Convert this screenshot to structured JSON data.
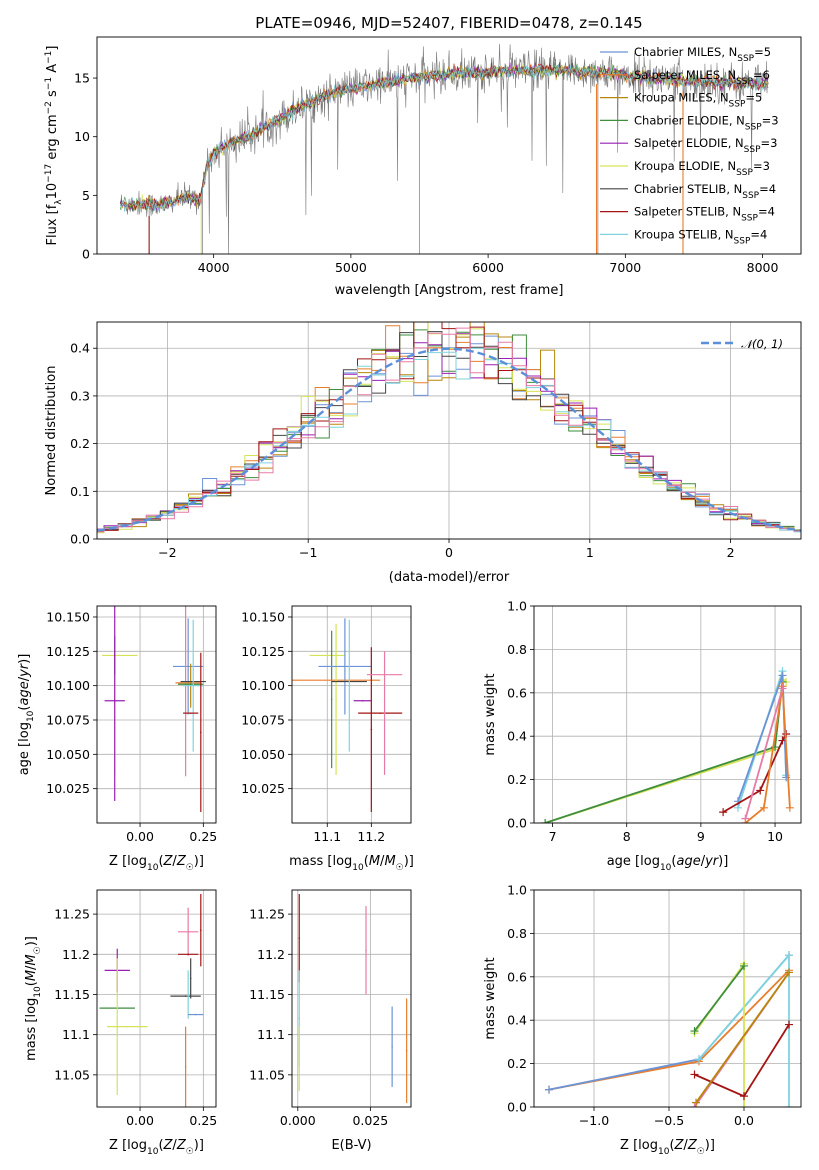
{
  "figure_title": "PLATE=0946, MJD=52407, FIBERID=0478, z=0.145",
  "colors": {
    "Chabrier MILES": "#6b93d6",
    "Salpeter MILES": "#e87d2c",
    "Kroupa MILES": "#b8860b",
    "Chabrier ELODIE": "#3e8e3e",
    "Salpeter ELODIE": "#9a1fb4",
    "Kroupa ELODIE": "#d6e35a",
    "Chabrier STELIB": "#444444",
    "Salpeter STELIB": "#a31515",
    "Kroupa STELIB": "#7fd3df",
    "extra_pink": "#e87aa6",
    "normal_curve": "#5b8fd9"
  },
  "chart_data": [
    {
      "id": "spectrum",
      "type": "line",
      "title": "PLATE=0946, MJD=52407, FIBERID=0478, z=0.145",
      "xlabel": "wavelength [Angstrom, rest frame]",
      "ylabel": "Flux [f_λ 10^-17 erg cm^-2 s^-1 A^-1]",
      "xlim": [
        3150,
        8280
      ],
      "ylim": [
        0,
        18.5
      ],
      "xticks": [
        4000,
        5000,
        6000,
        7000,
        8000
      ],
      "yticks": [
        0,
        5,
        10,
        15
      ],
      "grid": false,
      "legend_position": "top-right",
      "continuum": {
        "x": [
          3320,
          3400,
          3500,
          3600,
          3700,
          3800,
          3900,
          3950,
          4000,
          4100,
          4200,
          4300,
          4400,
          4500,
          4600,
          4700,
          4800,
          4900,
          5000,
          5200,
          5400,
          5600,
          5800,
          6000,
          6200,
          6400,
          6600,
          6800,
          7000,
          7200,
          7400,
          7600,
          7800,
          8040
        ],
        "y": [
          4.3,
          4.2,
          4.3,
          4.1,
          4.5,
          4.9,
          4.6,
          7.5,
          8.6,
          9.3,
          9.8,
          10.3,
          11.0,
          11.6,
          12.4,
          12.9,
          13.4,
          13.9,
          14.1,
          14.5,
          14.9,
          15.2,
          15.4,
          15.5,
          15.6,
          15.7,
          15.6,
          15.5,
          15.2,
          15.0,
          14.8,
          14.7,
          14.6,
          14.5
        ]
      },
      "series": [
        {
          "name": "Chabrier MILES, N_SSP=5",
          "color": "Chabrier MILES"
        },
        {
          "name": "Salpeter MILES, N_SSP=6",
          "color": "Salpeter MILES"
        },
        {
          "name": "Kroupa MILES, N_SSP=5",
          "color": "Kroupa MILES"
        },
        {
          "name": "Chabrier ELODIE, N_SSP=3",
          "color": "Chabrier ELODIE"
        },
        {
          "name": "Salpeter ELODIE, N_SSP=3",
          "color": "Salpeter ELODIE"
        },
        {
          "name": "Kroupa ELODIE, N_SSP=3",
          "color": "Kroupa ELODIE"
        },
        {
          "name": "Chabrier STELIB, N_SSP=4",
          "color": "Chabrier STELIB"
        },
        {
          "name": "Salpeter STELIB, N_SSP=4",
          "color": "Salpeter STELIB"
        },
        {
          "name": "Kroupa STELIB, N_SSP=4",
          "color": "Kroupa STELIB"
        }
      ]
    },
    {
      "id": "residuals",
      "type": "step",
      "xlabel": "(data-model)/error",
      "ylabel": "Normed distribution",
      "xlim": [
        -2.5,
        2.5
      ],
      "ylim": [
        0,
        0.455
      ],
      "xticks": [
        -2,
        -1,
        0,
        1,
        2
      ],
      "yticks": [
        0.0,
        0.1,
        0.2,
        0.3,
        0.4
      ],
      "grid": true,
      "legend_position": "top-right",
      "reference_curve": {
        "label": "𝒩(0, 1)",
        "mean": 0,
        "sigma": 1
      },
      "bin_width": 0.1
    },
    {
      "id": "age-vs-Z",
      "type": "errorbar",
      "xlabel": "Z [log10(Z/Z☉)]",
      "ylabel": "age [log10(age/yr)]",
      "xlim": [
        -0.17,
        0.3
      ],
      "ylim": [
        10.0,
        10.158
      ],
      "xticks": [
        0.0,
        0.25
      ],
      "xticklabels": [
        "0.00",
        "0.25"
      ],
      "yticks": [
        10.025,
        10.05,
        10.075,
        10.1,
        10.125,
        10.15
      ],
      "yticklabels": [
        "10.025",
        "10.050",
        "10.075",
        "10.100",
        "10.125",
        "10.150"
      ],
      "grid": true,
      "points": [
        {
          "color": "Kroupa ELODIE",
          "x": -0.08,
          "xerr": 0.07,
          "y": 10.122,
          "yerr": 0.0
        },
        {
          "color": "Kroupa ELODIE",
          "x": -0.1,
          "xerr": 0.0,
          "y": 10.08,
          "yerr": 0.045
        },
        {
          "color": "Chabrier ELODIE",
          "x": -0.1,
          "xerr": 0.0,
          "y": 10.122,
          "yerr": 0.014
        },
        {
          "color": "Salpeter ELODIE",
          "x": -0.1,
          "xerr": 0.04,
          "y": 10.089,
          "yerr": 0.073
        },
        {
          "color": "Chabrier MILES",
          "x": 0.19,
          "xerr": 0.06,
          "y": 10.114,
          "yerr": 0.035
        },
        {
          "color": "Salpeter MILES",
          "x": 0.19,
          "xerr": 0.05,
          "y": 10.102,
          "yerr": 0.0
        },
        {
          "color": "Kroupa MILES",
          "x": 0.2,
          "xerr": 0.0,
          "y": 10.1,
          "yerr": 0.016
        },
        {
          "color": "extra_pink",
          "x": 0.18,
          "xerr": 0.0,
          "y": 10.1,
          "yerr": 0.066
        },
        {
          "color": "Chabrier STELIB",
          "x": 0.21,
          "xerr": 0.05,
          "y": 10.103,
          "yerr": 0.0
        },
        {
          "color": "Chabrier ELODIE",
          "x": 0.2,
          "xerr": 0.05,
          "y": 10.101,
          "yerr": 0.0
        },
        {
          "color": "Kroupa STELIB",
          "x": 0.21,
          "xerr": 0.04,
          "y": 10.1,
          "yerr": 0.048
        },
        {
          "color": "Salpeter STELIB",
          "x": 0.24,
          "xerr": 0.0,
          "y": 10.066,
          "yerr": 0.058
        },
        {
          "color": "Salpeter STELIB",
          "x": 0.2,
          "xerr": 0.03,
          "y": 10.08,
          "yerr": 0.0
        }
      ]
    },
    {
      "id": "age-vs-mass",
      "type": "errorbar",
      "xlabel": "mass [log10(M/M☉)]",
      "ylabel": "",
      "xlim": [
        11.02,
        11.29
      ],
      "ylim": [
        10.0,
        10.158
      ],
      "xticks": [
        11.1,
        11.2
      ],
      "xticklabels": [
        "11.1",
        "11.2"
      ],
      "yticks": [
        10.025,
        10.05,
        10.075,
        10.1,
        10.125,
        10.15
      ],
      "yticklabels": [
        "10.025",
        "10.050",
        "10.075",
        "10.100",
        "10.125",
        "10.150"
      ],
      "grid": true,
      "points": [
        {
          "color": "Kroupa ELODIE",
          "x": 11.1,
          "xerr": 0.04,
          "y": 10.122,
          "yerr": 0.0
        },
        {
          "color": "Chabrier ELODIE",
          "x": 11.11,
          "xerr": 0.0,
          "y": 10.09,
          "yerr": 0.05
        },
        {
          "color": "Salpeter MILES",
          "x": 11.12,
          "xerr": 0.1,
          "y": 10.104,
          "yerr": 0.0
        },
        {
          "color": "Kroupa ELODIE",
          "x": 11.12,
          "xerr": 0.0,
          "y": 10.09,
          "yerr": 0.055
        },
        {
          "color": "Chabrier MILES",
          "x": 11.14,
          "xerr": 0.06,
          "y": 10.114,
          "yerr": 0.035
        },
        {
          "color": "Chabrier STELIB",
          "x": 11.15,
          "xerr": 0.04,
          "y": 10.103,
          "yerr": 0.0
        },
        {
          "color": "Kroupa STELIB",
          "x": 11.15,
          "xerr": 0.0,
          "y": 10.1,
          "yerr": 0.048
        },
        {
          "color": "Salpeter ELODIE",
          "x": 11.18,
          "xerr": 0.02,
          "y": 10.089,
          "yerr": 0.0
        },
        {
          "color": "Salpeter STELIB",
          "x": 11.2,
          "xerr": 0.0,
          "y": 10.068,
          "yerr": 0.06
        },
        {
          "color": "Salpeter STELIB",
          "x": 11.22,
          "xerr": 0.05,
          "y": 10.08,
          "yerr": 0.0
        },
        {
          "color": "extra_pink",
          "x": 11.23,
          "xerr": 0.04,
          "y": 10.108,
          "yerr": 0.0
        },
        {
          "color": "extra_pink",
          "x": 11.23,
          "xerr": 0.0,
          "y": 10.08,
          "yerr": 0.045
        }
      ]
    },
    {
      "id": "weight-vs-age",
      "type": "line",
      "xlabel": "age [log10(age/yr)]",
      "ylabel": "mass weight",
      "xlim": [
        6.75,
        10.35
      ],
      "ylim": [
        0,
        1.0
      ],
      "xticks": [
        7,
        8,
        9,
        10
      ],
      "yticks": [
        0.0,
        0.2,
        0.4,
        0.6,
        0.8,
        1.0
      ],
      "grid": true,
      "series": [
        {
          "color": "Kroupa ELODIE",
          "x": [
            6.9,
            10.0,
            10.1,
            10.15
          ],
          "y": [
            0.0,
            0.34,
            0.66,
            0.65
          ]
        },
        {
          "color": "Chabrier ELODIE",
          "x": [
            6.9,
            10.0,
            10.1
          ],
          "y": [
            0.0,
            0.35,
            0.65
          ]
        },
        {
          "color": "Kroupa STELIB",
          "x": [
            9.5,
            10.1,
            10.15
          ],
          "y": [
            0.07,
            0.7,
            0.22
          ]
        },
        {
          "color": "Chabrier MILES",
          "x": [
            9.5,
            10.1,
            10.15
          ],
          "y": [
            0.1,
            0.68,
            0.21
          ]
        },
        {
          "color": "Salpeter STELIB",
          "x": [
            9.3,
            9.8,
            10.1,
            10.15
          ],
          "y": [
            0.05,
            0.15,
            0.38,
            0.41
          ]
        },
        {
          "color": "Salpeter MILES",
          "x": [
            9.6,
            9.85,
            10.1,
            10.2
          ],
          "y": [
            0.0,
            0.07,
            0.63,
            0.07
          ]
        },
        {
          "color": "extra_pink",
          "x": [
            9.6,
            10.1
          ],
          "y": [
            0.02,
            0.62
          ]
        }
      ]
    },
    {
      "id": "mass-vs-Z",
      "type": "errorbar",
      "xlabel": "Z [log10(Z/Z☉)]",
      "ylabel": "mass [log10(M/M☉)]",
      "xlim": [
        -0.17,
        0.3
      ],
      "ylim": [
        11.01,
        11.28
      ],
      "xticks": [
        0.0,
        0.25
      ],
      "xticklabels": [
        "0.00",
        "0.25"
      ],
      "yticks": [
        11.05,
        11.1,
        11.15,
        11.2,
        11.25
      ],
      "grid": true,
      "points": [
        {
          "color": "Salpeter ELODIE",
          "x": -0.09,
          "xerr": 0.05,
          "y": 11.18,
          "yerr": 0.027
        },
        {
          "color": "Chabrier ELODIE",
          "x": -0.09,
          "xerr": 0.07,
          "y": 11.133,
          "yerr": 0.0
        },
        {
          "color": "Kroupa ELODIE",
          "x": -0.09,
          "xerr": 0.0,
          "y": 11.11,
          "yerr": 0.085
        },
        {
          "color": "Kroupa ELODIE",
          "x": -0.05,
          "xerr": 0.08,
          "y": 11.11,
          "yerr": 0.0
        },
        {
          "color": "extra_pink",
          "x": 0.19,
          "xerr": 0.04,
          "y": 11.228,
          "yerr": 0.03
        },
        {
          "color": "Salpeter STELIB",
          "x": 0.19,
          "xerr": 0.04,
          "y": 11.2,
          "yerr": 0.0
        },
        {
          "color": "Salpeter STELIB",
          "x": 0.24,
          "xerr": 0.0,
          "y": 11.23,
          "yerr": 0.045
        },
        {
          "color": "Chabrier STELIB",
          "x": 0.18,
          "xerr": 0.06,
          "y": 11.148,
          "yerr": 0.0
        },
        {
          "color": "Chabrier STELIB",
          "x": 0.2,
          "xerr": 0.0,
          "y": 11.17,
          "yerr": 0.025
        },
        {
          "color": "Kroupa STELIB",
          "x": 0.19,
          "xerr": 0.0,
          "y": 11.15,
          "yerr": 0.03
        },
        {
          "color": "Chabrier MILES",
          "x": 0.22,
          "xerr": 0.03,
          "y": 11.125,
          "yerr": 0.0
        },
        {
          "color": "Salpeter MILES",
          "x": 0.18,
          "xerr": 0.0,
          "y": 11.06,
          "yerr": 0.05
        }
      ]
    },
    {
      "id": "mass-vs-EBV",
      "type": "errorbar",
      "xlabel": "E(B-V)",
      "ylabel": "",
      "xlim": [
        -0.002,
        0.039
      ],
      "ylim": [
        11.01,
        11.28
      ],
      "xticks": [
        0.0,
        0.025
      ],
      "xticklabels": [
        "0.000",
        "0.025"
      ],
      "yticks": [
        11.05,
        11.1,
        11.15,
        11.2,
        11.25
      ],
      "grid": true,
      "points": [
        {
          "color": "Salpeter STELIB",
          "x": 0.0005,
          "xerr": 0.0,
          "y": 11.22,
          "yerr": 0.055
        },
        {
          "color": "Kroupa STELIB",
          "x": 0.0005,
          "xerr": 0.0,
          "y": 11.12,
          "yerr": 0.06
        },
        {
          "color": "Kroupa ELODIE",
          "x": 0.0005,
          "xerr": 0.0,
          "y": 11.07,
          "yerr": 0.04
        },
        {
          "color": "extra_pink",
          "x": 0.0235,
          "xerr": 0.0,
          "y": 11.205,
          "yerr": 0.055
        },
        {
          "color": "Chabrier MILES",
          "x": 0.0325,
          "xerr": 0.0,
          "y": 11.085,
          "yerr": 0.05
        },
        {
          "color": "Salpeter MILES",
          "x": 0.0375,
          "xerr": 0.0,
          "y": 11.08,
          "yerr": 0.065
        }
      ]
    },
    {
      "id": "weight-vs-Z",
      "type": "line",
      "xlabel": "Z [log10(Z/Z☉)]",
      "ylabel": "mass weight",
      "xlim": [
        -1.4,
        0.38
      ],
      "ylim": [
        0,
        1.0
      ],
      "xticks": [
        -1.0,
        -0.5,
        0.0
      ],
      "xticklabels": [
        "−1.0",
        "−0.5",
        "0.0"
      ],
      "yticks": [
        0.0,
        0.2,
        0.4,
        0.6,
        0.8,
        1.0
      ],
      "grid": true,
      "series": [
        {
          "color": "Salpeter MILES",
          "x": [
            -1.3,
            -0.3,
            0.3
          ],
          "y": [
            0.08,
            0.21,
            0.63
          ]
        },
        {
          "color": "Chabrier MILES",
          "x": [
            -1.3,
            -0.3,
            0.3
          ],
          "y": [
            0.08,
            0.22,
            0.7
          ]
        },
        {
          "color": "extra_pink",
          "x": [
            -0.33,
            0.3
          ],
          "y": [
            0.0,
            0.62
          ]
        },
        {
          "color": "Kroupa STELIB",
          "x": [
            -0.3,
            0.3,
            0.3
          ],
          "y": [
            0.22,
            0.7,
            0.0
          ]
        },
        {
          "color": "Kroupa ELODIE",
          "x": [
            -0.33,
            0.0,
            0.0
          ],
          "y": [
            0.34,
            0.66,
            0.0
          ]
        },
        {
          "color": "Chabrier ELODIE",
          "x": [
            -0.33,
            0.0
          ],
          "y": [
            0.35,
            0.65
          ]
        },
        {
          "color": "Salpeter STELIB",
          "x": [
            -0.33,
            0.0,
            0.3
          ],
          "y": [
            0.15,
            0.05,
            0.38
          ]
        },
        {
          "color": "Kroupa MILES",
          "x": [
            -0.32,
            0.3
          ],
          "y": [
            0.02,
            0.62
          ]
        }
      ]
    }
  ]
}
